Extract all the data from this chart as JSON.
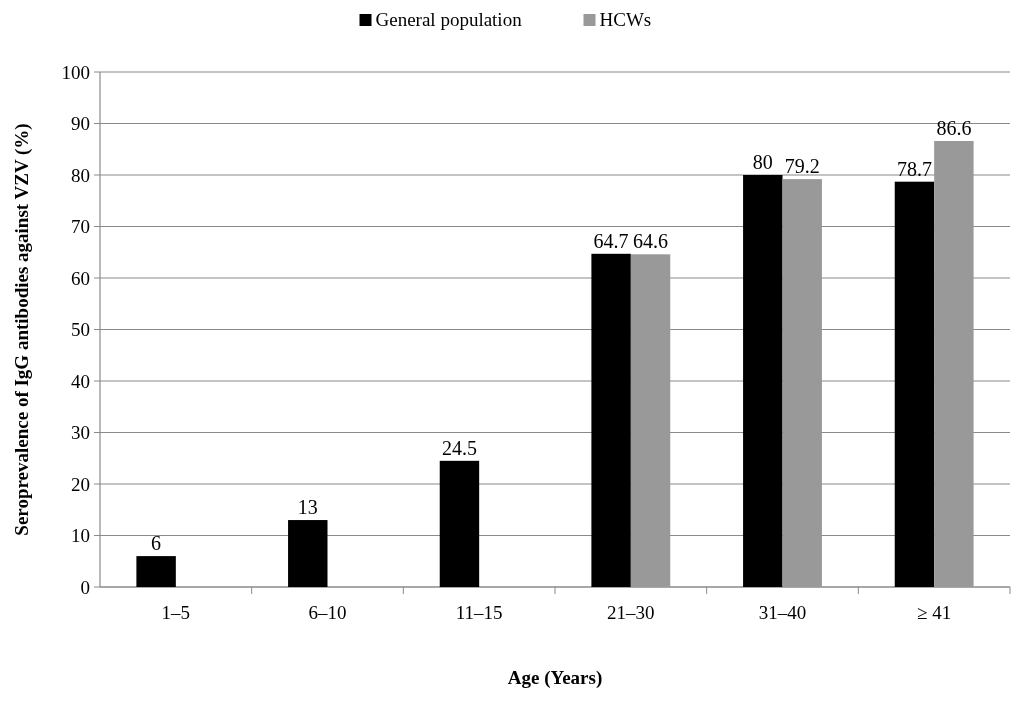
{
  "chart_data": {
    "type": "bar",
    "xlabel": "Age (Years)",
    "ylabel": "Seroprevalence of IgG antibodies against VZV (%)",
    "categories": [
      "1–5",
      "6–10",
      "11–15",
      "21–30",
      "31–40",
      "≥ 41"
    ],
    "series": [
      {
        "name": "General population",
        "color": "#000000",
        "values": [
          6,
          13,
          24.5,
          64.7,
          80,
          78.7
        ]
      },
      {
        "name": "HCWs",
        "color": "#999999",
        "values": [
          null,
          null,
          null,
          64.6,
          79.2,
          86.6
        ]
      }
    ],
    "ylim": [
      0,
      100
    ],
    "yticks": [
      0,
      10,
      20,
      30,
      40,
      50,
      60,
      70,
      80,
      90,
      100
    ],
    "grid": "y",
    "legend": "top",
    "data_labels": true
  }
}
